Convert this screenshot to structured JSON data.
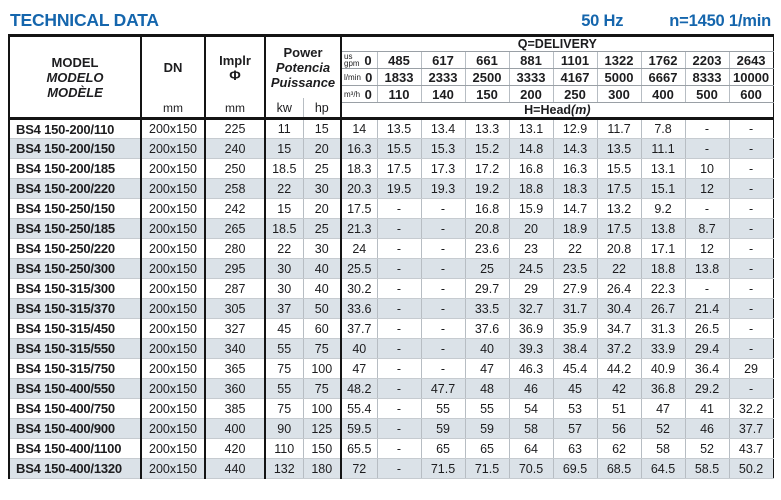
{
  "colors": {
    "accent_blue": "#1566ad",
    "row_shade": "#dbe2e8",
    "border_dark": "#141414",
    "border_light": "#b7bdc3"
  },
  "header": {
    "title": "TECHNICAL DATA",
    "frequency": "50 Hz",
    "speed": "n=1450 1/min"
  },
  "table": {
    "model_header": {
      "line1": "MODEL",
      "line2": "MODELO",
      "line3": "MODÈLE"
    },
    "dn": {
      "label": "DN",
      "unit": "mm"
    },
    "impeller": {
      "label": "Implr",
      "symbol": "Φ",
      "unit": "mm"
    },
    "power": {
      "line1": "Power",
      "line2": "Potencia",
      "line3": "Puissance",
      "unit_kw": "kw",
      "unit_hp": "hp"
    },
    "delivery": {
      "title": "Q=DELIVERY",
      "head_label": "H=Head",
      "head_unit": "(m)",
      "unit_rows": [
        {
          "unit_lines": [
            "us",
            "gpm"
          ],
          "values": [
            "0",
            "485",
            "617",
            "661",
            "881",
            "1101",
            "1322",
            "1762",
            "2203",
            "2643"
          ]
        },
        {
          "unit_lines": [
            "l/min"
          ],
          "values": [
            "0",
            "1833",
            "2333",
            "2500",
            "3333",
            "4167",
            "5000",
            "6667",
            "8333",
            "10000"
          ]
        },
        {
          "unit_lines": [
            "m³/h"
          ],
          "values": [
            "0",
            "110",
            "140",
            "150",
            "200",
            "250",
            "300",
            "400",
            "500",
            "600"
          ]
        }
      ]
    },
    "rows": [
      {
        "model": "BS4 150-200/110",
        "dn": "200x150",
        "implr": "225",
        "kw": "11",
        "hp": "15",
        "head": [
          "14",
          "13.5",
          "13.4",
          "13.3",
          "13.1",
          "12.9",
          "11.7",
          "7.8",
          "-",
          "-"
        ]
      },
      {
        "model": "BS4 150-200/150",
        "dn": "200x150",
        "implr": "240",
        "kw": "15",
        "hp": "20",
        "head": [
          "16.3",
          "15.5",
          "15.3",
          "15.2",
          "14.8",
          "14.3",
          "13.5",
          "11.1",
          "-",
          "-"
        ]
      },
      {
        "model": "BS4 150-200/185",
        "dn": "200x150",
        "implr": "250",
        "kw": "18.5",
        "hp": "25",
        "head": [
          "18.3",
          "17.5",
          "17.3",
          "17.2",
          "16.8",
          "16.3",
          "15.5",
          "13.1",
          "10",
          "-"
        ]
      },
      {
        "model": "BS4 150-200/220",
        "dn": "200x150",
        "implr": "258",
        "kw": "22",
        "hp": "30",
        "head": [
          "20.3",
          "19.5",
          "19.3",
          "19.2",
          "18.8",
          "18.3",
          "17.5",
          "15.1",
          "12",
          "-"
        ]
      },
      {
        "model": "BS4 150-250/150",
        "dn": "200x150",
        "implr": "242",
        "kw": "15",
        "hp": "20",
        "head": [
          "17.5",
          "-",
          "-",
          "16.8",
          "15.9",
          "14.7",
          "13.2",
          "9.2",
          "-",
          "-"
        ]
      },
      {
        "model": "BS4 150-250/185",
        "dn": "200x150",
        "implr": "265",
        "kw": "18.5",
        "hp": "25",
        "head": [
          "21.3",
          "-",
          "-",
          "20.8",
          "20",
          "18.9",
          "17.5",
          "13.8",
          "8.7",
          "-"
        ]
      },
      {
        "model": "BS4 150-250/220",
        "dn": "200x150",
        "implr": "280",
        "kw": "22",
        "hp": "30",
        "head": [
          "24",
          "-",
          "-",
          "23.6",
          "23",
          "22",
          "20.8",
          "17.1",
          "12",
          "-"
        ]
      },
      {
        "model": "BS4 150-250/300",
        "dn": "200x150",
        "implr": "295",
        "kw": "30",
        "hp": "40",
        "head": [
          "25.5",
          "-",
          "-",
          "25",
          "24.5",
          "23.5",
          "22",
          "18.8",
          "13.8",
          "-"
        ]
      },
      {
        "model": "BS4 150-315/300",
        "dn": "200x150",
        "implr": "287",
        "kw": "30",
        "hp": "40",
        "head": [
          "30.2",
          "-",
          "-",
          "29.7",
          "29",
          "27.9",
          "26.4",
          "22.3",
          "-",
          "-"
        ]
      },
      {
        "model": "BS4 150-315/370",
        "dn": "200x150",
        "implr": "305",
        "kw": "37",
        "hp": "50",
        "head": [
          "33.6",
          "-",
          "-",
          "33.5",
          "32.7",
          "31.7",
          "30.4",
          "26.7",
          "21.4",
          "-"
        ]
      },
      {
        "model": "BS4 150-315/450",
        "dn": "200x150",
        "implr": "327",
        "kw": "45",
        "hp": "60",
        "head": [
          "37.7",
          "-",
          "-",
          "37.6",
          "36.9",
          "35.9",
          "34.7",
          "31.3",
          "26.5",
          "-"
        ]
      },
      {
        "model": "BS4 150-315/550",
        "dn": "200x150",
        "implr": "340",
        "kw": "55",
        "hp": "75",
        "head": [
          "40",
          "-",
          "-",
          "40",
          "39.3",
          "38.4",
          "37.2",
          "33.9",
          "29.4",
          "-"
        ]
      },
      {
        "model": "BS4 150-315/750",
        "dn": "200x150",
        "implr": "365",
        "kw": "75",
        "hp": "100",
        "head": [
          "47",
          "-",
          "-",
          "47",
          "46.3",
          "45.4",
          "44.2",
          "40.9",
          "36.4",
          "29"
        ]
      },
      {
        "model": "BS4 150-400/550",
        "dn": "200x150",
        "implr": "360",
        "kw": "55",
        "hp": "75",
        "head": [
          "48.2",
          "-",
          "47.7",
          "48",
          "46",
          "45",
          "42",
          "36.8",
          "29.2",
          "-"
        ]
      },
      {
        "model": "BS4 150-400/750",
        "dn": "200x150",
        "implr": "385",
        "kw": "75",
        "hp": "100",
        "head": [
          "55.4",
          "-",
          "55",
          "55",
          "54",
          "53",
          "51",
          "47",
          "41",
          "32.2"
        ]
      },
      {
        "model": "BS4 150-400/900",
        "dn": "200x150",
        "implr": "400",
        "kw": "90",
        "hp": "125",
        "head": [
          "59.5",
          "-",
          "59",
          "59",
          "58",
          "57",
          "56",
          "52",
          "46",
          "37.7"
        ]
      },
      {
        "model": "BS4 150-400/1100",
        "dn": "200x150",
        "implr": "420",
        "kw": "110",
        "hp": "150",
        "head": [
          "65.5",
          "-",
          "65",
          "65",
          "64",
          "63",
          "62",
          "58",
          "52",
          "43.7"
        ]
      },
      {
        "model": "BS4 150-400/1320",
        "dn": "200x150",
        "implr": "440",
        "kw": "132",
        "hp": "180",
        "head": [
          "72",
          "-",
          "71.5",
          "71.5",
          "70.5",
          "69.5",
          "68.5",
          "64.5",
          "58.5",
          "50.2"
        ]
      }
    ]
  }
}
